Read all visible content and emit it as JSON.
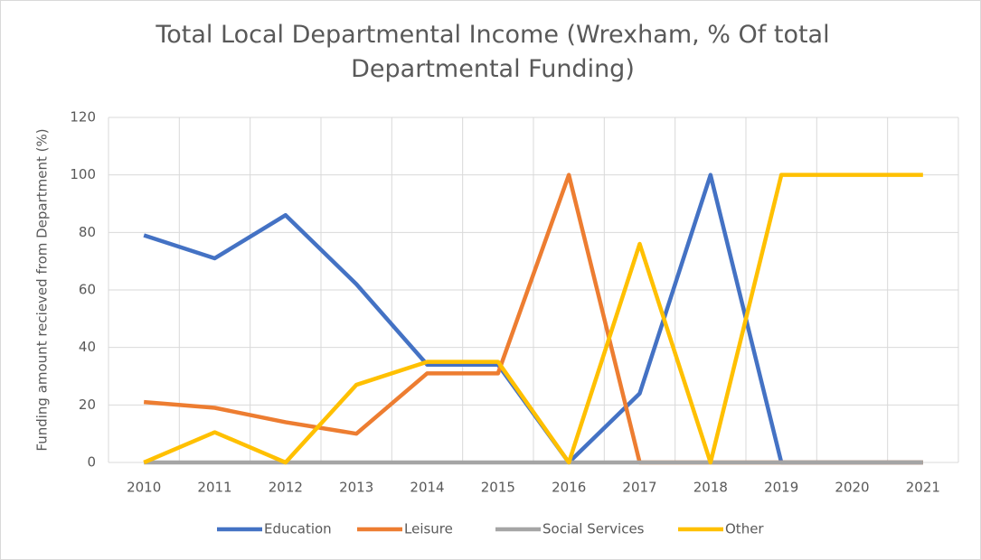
{
  "chart_data": {
    "type": "line",
    "title": "Total Local Departmental Income (Wrexham, % Of total Departmental Funding)",
    "y_label": "Funding amount recieved from Department (%)",
    "categories": [
      "2010",
      "2011",
      "2012",
      "2013",
      "2014",
      "2015",
      "2016",
      "2017",
      "2018",
      "2019",
      "2020",
      "2021"
    ],
    "series": [
      {
        "name": "Education",
        "color": "#4472c4",
        "values": [
          79,
          71,
          86,
          62,
          34,
          34,
          0,
          24,
          100,
          0,
          0,
          0
        ]
      },
      {
        "name": "Leisure",
        "color": "#ed7d31",
        "values": [
          21,
          19,
          14,
          10,
          31,
          31,
          100,
          0,
          0,
          0,
          0,
          0
        ]
      },
      {
        "name": "Social Services",
        "color": "#a5a5a5",
        "values": [
          0,
          0,
          0,
          0,
          0,
          0,
          0,
          0,
          0,
          0,
          0,
          0
        ]
      },
      {
        "name": "Other",
        "color": "#ffc000",
        "values": [
          0,
          10.5,
          0,
          27,
          35,
          35,
          0,
          76,
          0,
          100,
          100,
          100
        ]
      }
    ],
    "ylim": [
      0,
      120
    ],
    "yticks": [
      0,
      20,
      40,
      60,
      80,
      100,
      120
    ],
    "grid": true,
    "legend": "bottom"
  }
}
